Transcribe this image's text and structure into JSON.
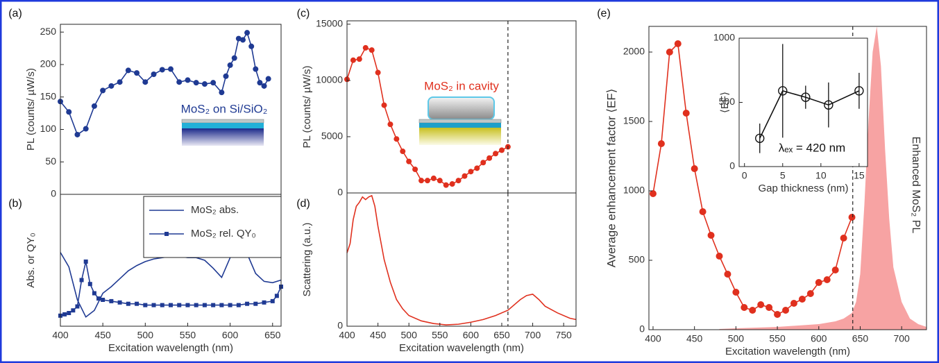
{
  "chart_data": [
    {
      "type": "line",
      "label": "(a)",
      "ylabel": "PL (counts/ µW/s)",
      "annotation": "MoS₂ on Si/SiO₂",
      "xlim": [
        400,
        660
      ],
      "ylim": [
        0,
        262
      ],
      "yticks": [
        0,
        50,
        100,
        150,
        200,
        250
      ],
      "x": [
        400,
        410,
        420,
        430,
        440,
        450,
        460,
        470,
        480,
        490,
        500,
        510,
        520,
        530,
        540,
        550,
        560,
        570,
        580,
        590,
        595,
        600,
        605,
        610,
        615,
        620,
        625,
        630,
        635,
        640,
        645
      ],
      "series": [
        {
          "color": "#1f3a93",
          "marker": "circle",
          "values": [
            143,
            127,
            92,
            101,
            136,
            160,
            167,
            173,
            191,
            187,
            173,
            185,
            192,
            193,
            173,
            176,
            172,
            170,
            172,
            157,
            182,
            199,
            210,
            240,
            238,
            249,
            228,
            193,
            172,
            167,
            178
          ]
        }
      ]
    },
    {
      "type": "line",
      "label": "(b)",
      "ylabel": "Abs. or QY₀",
      "xlabel": "Excitation wavelength (nm)",
      "xlim": [
        400,
        660
      ],
      "xticks": [
        400,
        450,
        500,
        550,
        600,
        650
      ],
      "ylim": [
        0,
        1
      ],
      "legend": "top-right",
      "series": [
        {
          "name": "MoS₂ abs.",
          "color": "#1f3a93",
          "marker": "none",
          "x": [
            400,
            410,
            420,
            430,
            440,
            450,
            460,
            470,
            480,
            490,
            500,
            510,
            520,
            530,
            540,
            550,
            560,
            570,
            580,
            590,
            600,
            610,
            620,
            630,
            640,
            650,
            660
          ],
          "values": [
            0.56,
            0.45,
            0.2,
            0.07,
            0.12,
            0.25,
            0.3,
            0.36,
            0.42,
            0.46,
            0.49,
            0.51,
            0.52,
            0.53,
            0.53,
            0.52,
            0.52,
            0.5,
            0.44,
            0.37,
            0.52,
            0.62,
            0.55,
            0.4,
            0.34,
            0.33,
            0.35
          ]
        },
        {
          "name": "MoS₂ rel. QY₀",
          "color": "#1f3a93",
          "marker": "square",
          "x": [
            400,
            405,
            410,
            415,
            420,
            425,
            430,
            435,
            440,
            445,
            450,
            460,
            470,
            480,
            490,
            500,
            510,
            520,
            530,
            540,
            550,
            560,
            570,
            580,
            590,
            600,
            610,
            620,
            630,
            640,
            650,
            655,
            660
          ],
          "values": [
            0.08,
            0.09,
            0.1,
            0.12,
            0.15,
            0.35,
            0.49,
            0.32,
            0.25,
            0.21,
            0.2,
            0.19,
            0.18,
            0.17,
            0.17,
            0.16,
            0.16,
            0.16,
            0.16,
            0.16,
            0.16,
            0.16,
            0.16,
            0.16,
            0.16,
            0.16,
            0.16,
            0.17,
            0.17,
            0.18,
            0.19,
            0.23,
            0.3
          ]
        }
      ]
    },
    {
      "type": "line",
      "label": "(c)",
      "ylabel": "PL (counts/ µW/s)",
      "annotation": "MoS₂ in cavity",
      "xlim": [
        400,
        770
      ],
      "ylim": [
        0,
        15300
      ],
      "yticks": [
        0,
        5000,
        10000,
        15000
      ],
      "vlines": [
        660
      ],
      "x": [
        400,
        410,
        420,
        430,
        440,
        450,
        460,
        470,
        480,
        490,
        500,
        510,
        520,
        530,
        540,
        550,
        560,
        570,
        580,
        590,
        600,
        610,
        620,
        630,
        640,
        650,
        660
      ],
      "series": [
        {
          "color": "#e0301e",
          "marker": "circle",
          "values": [
            10100,
            11800,
            11900,
            12900,
            12700,
            10700,
            7800,
            6100,
            4800,
            3700,
            2800,
            2100,
            1100,
            1100,
            1300,
            1100,
            700,
            800,
            1100,
            1500,
            1900,
            2200,
            2700,
            3100,
            3500,
            3800,
            4100
          ]
        }
      ]
    },
    {
      "type": "line",
      "label": "(d)",
      "ylabel": "Scattering (a.u.)",
      "xlabel": "Excitation wavelength (nm)",
      "xlim": [
        400,
        770
      ],
      "xticks": [
        400,
        450,
        500,
        550,
        600,
        650,
        700,
        750
      ],
      "ylim": [
        0,
        1
      ],
      "yticks": [
        0
      ],
      "vlines": [
        660
      ],
      "x": [
        400,
        405,
        410,
        415,
        420,
        425,
        430,
        435,
        440,
        445,
        450,
        460,
        470,
        480,
        490,
        500,
        520,
        540,
        560,
        580,
        600,
        620,
        640,
        660,
        680,
        690,
        700,
        710,
        720,
        740,
        760,
        770
      ],
      "series": [
        {
          "color": "#e0301e",
          "marker": "none",
          "values": [
            0.55,
            0.62,
            0.8,
            0.9,
            0.93,
            0.97,
            0.95,
            0.97,
            0.98,
            0.9,
            0.75,
            0.5,
            0.33,
            0.2,
            0.13,
            0.08,
            0.04,
            0.02,
            0.01,
            0.015,
            0.03,
            0.05,
            0.08,
            0.12,
            0.2,
            0.23,
            0.24,
            0.2,
            0.15,
            0.1,
            0.06,
            0.05
          ]
        }
      ]
    },
    {
      "type": "line",
      "label": "(e)",
      "ylabel": "Average enhancement factor ⟨EF⟩",
      "xlabel": "Excitation wavelength (nm)",
      "xlim": [
        395,
        730
      ],
      "xticks": [
        400,
        450,
        500,
        550,
        600,
        650,
        700
      ],
      "ylim": [
        0,
        2185
      ],
      "yticks": [
        0,
        500,
        1000,
        1500,
        2000
      ],
      "vlines": [
        641
      ],
      "series": [
        {
          "name": "Enhanced MoS₂ PL",
          "color": "#f7a3a3",
          "style": "area",
          "x": [
            480,
            500,
            550,
            600,
            620,
            630,
            640,
            645,
            650,
            655,
            660,
            665,
            670,
            675,
            680,
            685,
            690,
            700,
            710,
            720,
            730
          ],
          "values": [
            5,
            10,
            20,
            40,
            60,
            80,
            120,
            200,
            400,
            900,
            1500,
            2000,
            2185,
            1900,
            1300,
            800,
            450,
            200,
            80,
            40,
            20
          ]
        },
        {
          "color": "#e0301e",
          "marker": "circle",
          "x": [
            400,
            410,
            420,
            430,
            440,
            450,
            460,
            470,
            480,
            490,
            500,
            510,
            520,
            530,
            540,
            550,
            560,
            570,
            580,
            590,
            600,
            610,
            620,
            630,
            640
          ],
          "values": [
            980,
            1340,
            2000,
            2060,
            1560,
            1160,
            850,
            680,
            530,
            400,
            270,
            160,
            140,
            180,
            160,
            110,
            140,
            190,
            220,
            260,
            340,
            360,
            430,
            660,
            810
          ]
        }
      ]
    },
    {
      "type": "scatter",
      "xlabel": "Gap thickness (nm)",
      "ylabel": "⟨EF⟩",
      "annotation": "λₑₓ = 420 nm",
      "xlim": [
        -0.7,
        16.1
      ],
      "xticks": [
        0,
        5,
        10,
        15
      ],
      "ylim": [
        0,
        1000
      ],
      "yticks": [
        0,
        500,
        1000
      ],
      "x": [
        2,
        5,
        8,
        11,
        15
      ],
      "series": [
        {
          "color": "#111111",
          "marker": "open-circle",
          "values": [
            220,
            590,
            540,
            480,
            590
          ],
          "errors": [
            115,
            365,
            90,
            175,
            140
          ]
        }
      ]
    }
  ]
}
